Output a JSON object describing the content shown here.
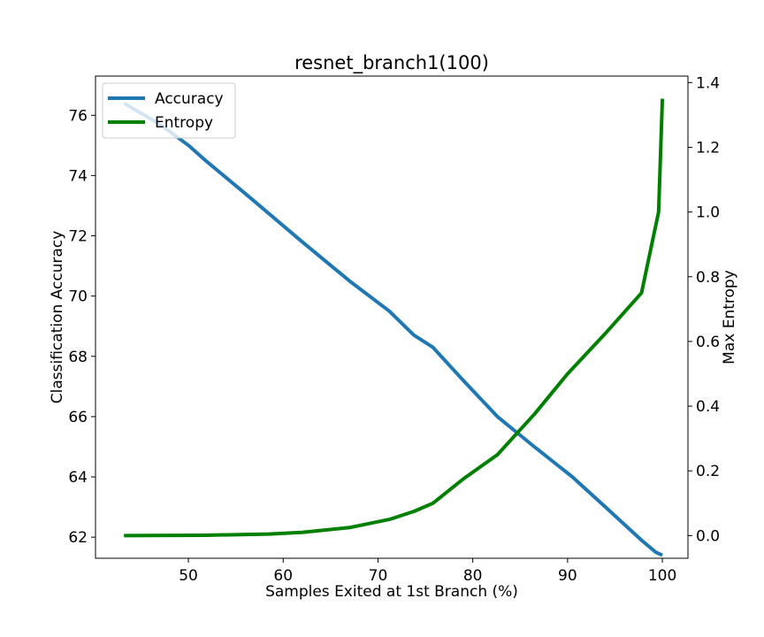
{
  "chart_data": {
    "type": "line",
    "title": "resnet_branch1(100)",
    "xlabel": "Samples Exited at 1st Branch (%)",
    "ylabel": "Classification Accuracy",
    "y2label": "Max Entropy",
    "xlim": [
      40.2,
      102.7
    ],
    "ylim": [
      61.3,
      77.3
    ],
    "y2lim": [
      -0.07,
      1.42
    ],
    "xticks": [
      50,
      60,
      70,
      80,
      90,
      100
    ],
    "yticks": [
      62,
      64,
      66,
      68,
      70,
      72,
      74,
      76
    ],
    "y2ticks": [
      0.0,
      0.2,
      0.4,
      0.6,
      0.8,
      1.0,
      1.2,
      1.4
    ],
    "y2tick_labels": [
      "0.0",
      "0.2",
      "0.4",
      "0.6",
      "0.8",
      "1.0",
      "1.2",
      "1.4"
    ],
    "legend_position": "top-left",
    "grid": false,
    "series": [
      {
        "name": "Accuracy",
        "axis": "left",
        "color": "#1f77b4",
        "x": [
          43.2,
          47.0,
          50.0,
          51.8,
          56.0,
          62.0,
          67.0,
          71.2,
          73.8,
          75.8,
          79.0,
          82.6,
          86.5,
          90.5,
          94.0,
          97.8,
          99.3,
          100.0
        ],
        "y": [
          76.4,
          75.7,
          75.0,
          74.5,
          73.4,
          71.8,
          70.5,
          69.5,
          68.7,
          68.3,
          67.2,
          66.0,
          65.0,
          64.0,
          63.0,
          61.9,
          61.5,
          61.4
        ]
      },
      {
        "name": "Entropy",
        "axis": "right",
        "color": "#008000",
        "x": [
          43.2,
          51.8,
          58.5,
          62.0,
          67.0,
          71.2,
          73.8,
          75.8,
          79.0,
          82.6,
          86.5,
          90.0,
          94.0,
          97.8,
          99.6,
          100.0
        ],
        "y": [
          0.0,
          0.001,
          0.005,
          0.01,
          0.025,
          0.05,
          0.075,
          0.1,
          0.175,
          0.25,
          0.375,
          0.5,
          0.625,
          0.75,
          1.0,
          1.35
        ]
      }
    ]
  }
}
